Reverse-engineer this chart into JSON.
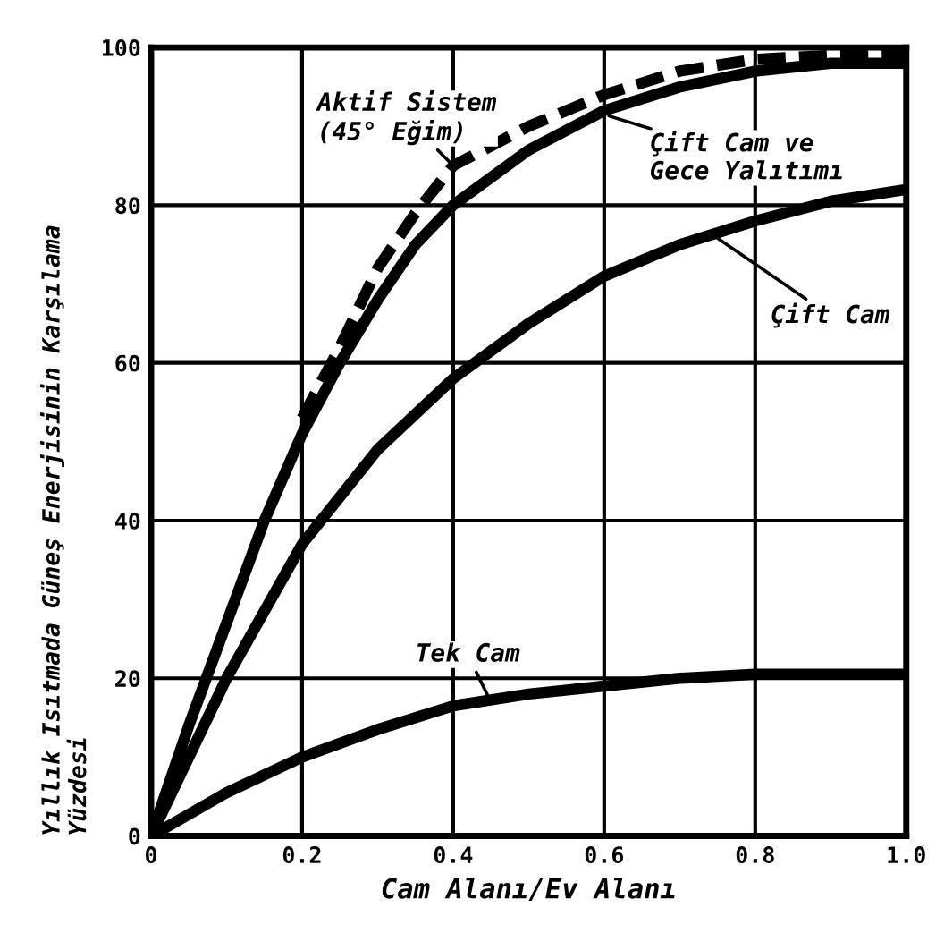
{
  "chart_data": {
    "type": "line",
    "xlabel": "Cam Alanı/Ev Alanı",
    "ylabel": "Yıllık Isıtmada Güneş Enerjisinin Karşılama\nYüzdesi",
    "xlim": [
      0,
      1.0
    ],
    "ylim": [
      0,
      100
    ],
    "xticks": [
      0,
      0.2,
      0.4,
      0.6,
      0.8,
      {
        "value": 1.0,
        "label": "1.0"
      }
    ],
    "yticks": [
      0,
      20,
      40,
      60,
      80,
      100
    ],
    "grid": true,
    "marker": "none",
    "series": [
      {
        "color": "#000000",
        "line_style": "dashed",
        "x": [
          0.2,
          0.25,
          0.3,
          0.35,
          0.4,
          0.5,
          0.6,
          0.7,
          0.8,
          0.9,
          1.0
        ],
        "values": [
          53,
          62,
          72,
          79,
          85,
          90,
          94,
          97,
          98.5,
          99,
          99
        ]
      },
      {
        "color": "#000000",
        "line_style": "solid",
        "x": [
          0,
          0.05,
          0.1,
          0.15,
          0.2,
          0.25,
          0.3,
          0.35,
          0.4,
          0.5,
          0.6,
          0.7,
          0.8,
          0.9,
          1.0
        ],
        "values": [
          0,
          14,
          27,
          40,
          51,
          60,
          68,
          75,
          80,
          87,
          92,
          95,
          97,
          98,
          98
        ]
      },
      {
        "color": "#000000",
        "line_style": "solid",
        "x": [
          0,
          0.1,
          0.2,
          0.3,
          0.4,
          0.5,
          0.6,
          0.7,
          0.8,
          0.9,
          1.0
        ],
        "values": [
          0,
          20,
          37,
          49,
          58,
          65,
          71,
          75,
          78,
          80.5,
          82
        ]
      },
      {
        "color": "#000000",
        "line_style": "solid",
        "x": [
          0,
          0.1,
          0.2,
          0.3,
          0.4,
          0.5,
          0.6,
          0.7,
          0.8,
          0.9,
          1.0
        ],
        "values": [
          0,
          5.5,
          10,
          13.5,
          16.5,
          18,
          19,
          20,
          20.5,
          20.5,
          20.5
        ]
      }
    ],
    "annotations": [
      {
        "text": "Aktif Sistem\n(45° Eğim)",
        "x": 0.4,
        "y": 85
      },
      {
        "text": "Çift Cam ve\nGece Yalıtımı",
        "x": 0.6,
        "y": 91.5
      },
      {
        "text": "Çift Cam",
        "x": 0.74,
        "y": 76.5
      },
      {
        "text": "Tek Cam",
        "x": 0.45,
        "y": 17
      }
    ]
  }
}
